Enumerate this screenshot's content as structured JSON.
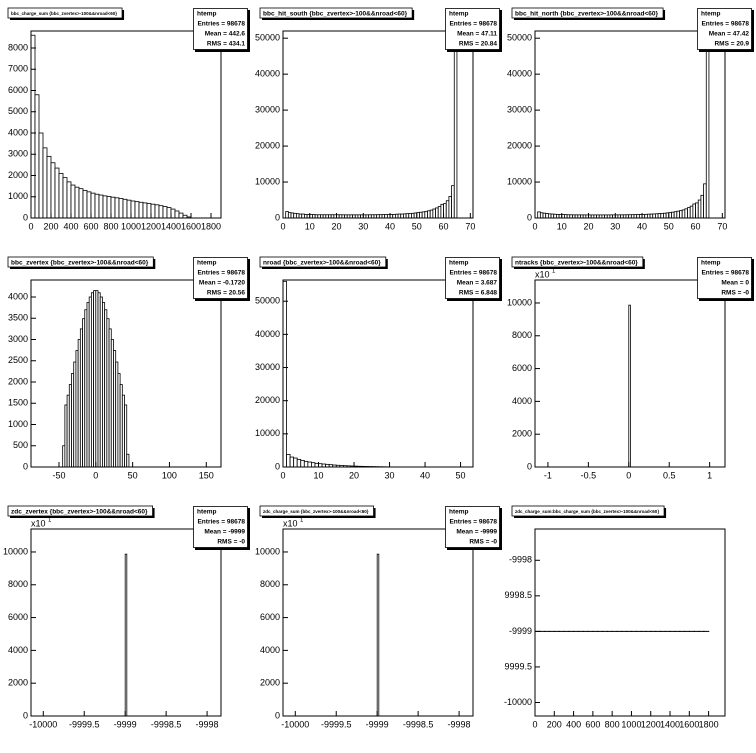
{
  "chart_data": [
    {
      "type": "histogram",
      "title": "bbc_charge_sum {bbc_zvertex>-100&&nroad<60}",
      "stats": [
        "htemp",
        "Entries = 98678",
        "Mean = 442.6",
        "RMS = 434.1"
      ],
      "color": "#000000",
      "bins": [
        0,
        40,
        80,
        120,
        160,
        200,
        240,
        280,
        320,
        360,
        400,
        440,
        480,
        520,
        560,
        600,
        640,
        680,
        720,
        760,
        800,
        840,
        880,
        920,
        960,
        1000,
        1040,
        1080,
        1120,
        1160,
        1200,
        1240,
        1280,
        1320,
        1360,
        1400,
        1440,
        1480,
        1520,
        1560,
        1600
      ],
      "values": [
        8600,
        5800,
        4000,
        3300,
        2900,
        2600,
        2350,
        2100,
        1900,
        1700,
        1550,
        1450,
        1380,
        1300,
        1230,
        1170,
        1120,
        1080,
        1040,
        1010,
        980,
        950,
        920,
        880,
        840,
        800,
        770,
        740,
        710,
        680,
        650,
        620,
        580,
        540,
        490,
        420,
        330,
        230,
        130,
        50
      ],
      "xlim": [
        0,
        1900
      ],
      "xticks": [
        0,
        200,
        400,
        600,
        800,
        1000,
        1200,
        1400,
        1600,
        1800
      ],
      "ylim": [
        0,
        8800
      ],
      "yticks": [
        0,
        1000,
        2000,
        3000,
        4000,
        5000,
        6000,
        7000,
        8000
      ]
    },
    {
      "type": "histogram",
      "title": "bbc_hit_south {bbc_zvertex>-100&&nroad<60}",
      "stats": [
        "htemp",
        "Entries = 98678",
        "Mean = 47.11",
        "RMS = 20.84"
      ],
      "color": "#000000",
      "bins": [
        0,
        1,
        2,
        3,
        4,
        5,
        6,
        7,
        8,
        9,
        10,
        11,
        12,
        13,
        14,
        15,
        16,
        17,
        18,
        19,
        20,
        21,
        22,
        23,
        24,
        25,
        26,
        27,
        28,
        29,
        30,
        31,
        32,
        33,
        34,
        35,
        36,
        37,
        38,
        39,
        40,
        41,
        42,
        43,
        44,
        45,
        46,
        47,
        48,
        49,
        50,
        51,
        52,
        53,
        54,
        55,
        56,
        57,
        58,
        59,
        60,
        61,
        62,
        63,
        64,
        65,
        66,
        67,
        68,
        69,
        70
      ],
      "values": [
        0,
        1800,
        1500,
        1400,
        1300,
        1200,
        1100,
        1100,
        1000,
        1000,
        950,
        950,
        900,
        900,
        900,
        900,
        900,
        900,
        900,
        900,
        900,
        900,
        880,
        880,
        880,
        880,
        880,
        880,
        880,
        880,
        880,
        880,
        900,
        900,
        900,
        920,
        920,
        950,
        950,
        980,
        1000,
        1000,
        1050,
        1100,
        1100,
        1150,
        1200,
        1250,
        1300,
        1400,
        1500,
        1600,
        1700,
        1850,
        2000,
        2200,
        2500,
        2800,
        3200,
        3800,
        4000,
        4800,
        6000,
        9000,
        52000,
        0,
        0,
        0,
        0,
        0
      ],
      "xlim": [
        0,
        71
      ],
      "xticks": [
        0,
        10,
        20,
        30,
        40,
        50,
        60,
        70
      ],
      "ylim": [
        0,
        52000
      ],
      "yticks": [
        0,
        10000,
        20000,
        30000,
        40000,
        50000
      ]
    },
    {
      "type": "histogram",
      "title": "bbc_hit_north {bbc_zvertex>-100&&nroad<60}",
      "stats": [
        "htemp",
        "Entries = 98678",
        "Mean = 47.42",
        "RMS = 20.9"
      ],
      "color": "#000000",
      "bins": [
        0,
        1,
        2,
        3,
        4,
        5,
        6,
        7,
        8,
        9,
        10,
        11,
        12,
        13,
        14,
        15,
        16,
        17,
        18,
        19,
        20,
        21,
        22,
        23,
        24,
        25,
        26,
        27,
        28,
        29,
        30,
        31,
        32,
        33,
        34,
        35,
        36,
        37,
        38,
        39,
        40,
        41,
        42,
        43,
        44,
        45,
        46,
        47,
        48,
        49,
        50,
        51,
        52,
        53,
        54,
        55,
        56,
        57,
        58,
        59,
        60,
        61,
        62,
        63,
        64,
        65,
        66,
        67,
        68,
        69,
        70
      ],
      "values": [
        0,
        1700,
        1450,
        1350,
        1250,
        1150,
        1100,
        1050,
        1000,
        980,
        950,
        930,
        900,
        890,
        880,
        880,
        870,
        870,
        870,
        860,
        860,
        860,
        860,
        860,
        860,
        860,
        860,
        860,
        870,
        870,
        870,
        880,
        880,
        890,
        900,
        910,
        920,
        940,
        960,
        990,
        1000,
        1020,
        1060,
        1100,
        1130,
        1170,
        1220,
        1270,
        1330,
        1420,
        1520,
        1620,
        1750,
        1900,
        2050,
        2250,
        2550,
        2900,
        3300,
        3900,
        4200,
        5000,
        6300,
        9500,
        51800,
        0,
        0,
        0,
        0,
        0
      ],
      "xlim": [
        0,
        71
      ],
      "xticks": [
        0,
        10,
        20,
        30,
        40,
        50,
        60,
        70
      ],
      "ylim": [
        0,
        52000
      ],
      "yticks": [
        0,
        10000,
        20000,
        30000,
        40000,
        50000
      ]
    },
    {
      "type": "histogram",
      "title": "bbc_zvertex {bbc_zvertex>-100&&nroad<60}",
      "stats": [
        "htemp",
        "Entries = 98678",
        "Mean = -0.1720",
        "RMS = 20.56"
      ],
      "color": "#000000",
      "bins": [
        -45,
        -42,
        -39,
        -36,
        -33,
        -30,
        -27,
        -24,
        -21,
        -18,
        -15,
        -12,
        -9,
        -6,
        -3,
        0,
        3,
        6,
        9,
        12,
        15,
        18,
        21,
        24,
        27,
        30,
        33,
        36,
        39,
        42,
        45
      ],
      "values": [
        500,
        1460,
        1690,
        1940,
        2200,
        2470,
        2740,
        3000,
        3250,
        3490,
        3700,
        3870,
        4000,
        4100,
        4150,
        4150,
        4100,
        4000,
        3870,
        3700,
        3490,
        3250,
        3000,
        2740,
        2470,
        2200,
        1940,
        1690,
        1460,
        300
      ],
      "xlim": [
        -88,
        170
      ],
      "xticks": [
        -50,
        0,
        50,
        100,
        150
      ],
      "ylim": [
        0,
        4400
      ],
      "yticks": [
        0,
        500,
        1000,
        1500,
        2000,
        2500,
        3000,
        3500,
        4000
      ]
    },
    {
      "type": "histogram",
      "title": "nroad {bbc_zvertex>-100&&nroad<60}",
      "stats": [
        "htemp",
        "Entries = 98678",
        "Mean = 3.687",
        "RMS = 6.848"
      ],
      "color": "#000000",
      "bins": [
        0,
        1,
        2,
        3,
        4,
        5,
        6,
        7,
        8,
        9,
        10,
        11,
        12,
        13,
        14,
        15,
        16,
        17,
        18,
        19,
        20,
        21,
        22,
        23,
        24,
        25,
        26,
        27,
        28,
        29,
        30
      ],
      "values": [
        56000,
        3800,
        3000,
        2700,
        2300,
        2000,
        1700,
        1500,
        1300,
        1100,
        1000,
        900,
        800,
        700,
        600,
        520,
        450,
        400,
        350,
        300,
        260,
        220,
        190,
        160,
        140,
        120,
        100,
        80,
        60,
        40
      ],
      "xlim": [
        0,
        53.5
      ],
      "xticks": [
        0,
        10,
        20,
        30,
        40,
        50
      ],
      "ylim": [
        0,
        56400
      ],
      "yticks": [
        0,
        10000,
        20000,
        30000,
        40000,
        50000
      ]
    },
    {
      "type": "histogram",
      "title": "ntracks {bbc_zvertex>-100&&nroad<60}",
      "stats": [
        "htemp",
        "Entries = 98678",
        "Mean =    0",
        "RMS =   -0"
      ],
      "color": "#000000",
      "y_multiplier": "x10",
      "y_multiplier_exponent": "1",
      "bins": [
        0,
        0.02
      ],
      "values": [
        9868
      ],
      "xlim": [
        -1.16,
        1.19
      ],
      "xticks": [
        -1,
        -0.5,
        0,
        0.5,
        1
      ],
      "ylim": [
        0,
        11400
      ],
      "yticks": [
        0,
        2000,
        4000,
        6000,
        8000,
        10000
      ]
    },
    {
      "type": "histogram",
      "title": "zdc_zvertex {bbc_zvertex>-100&&nroad<60}",
      "stats": [
        "htemp",
        "Entries = 98678",
        "Mean = -9999",
        "RMS =   -0"
      ],
      "color": "#000000",
      "y_multiplier": "x10",
      "y_multiplier_exponent": "1",
      "bins": [
        -9999,
        -9998.98
      ],
      "values": [
        9868
      ],
      "xlim": [
        -10000.15,
        -9997.83
      ],
      "xticks": [
        -10000,
        -9999.5,
        -9999,
        -9998.5,
        -9998
      ],
      "ylim": [
        0,
        11400
      ],
      "yticks": [
        0,
        2000,
        4000,
        6000,
        8000,
        10000
      ]
    },
    {
      "type": "histogram",
      "title": "zdc_charge_sum {bbc_zvertex>-100&&nroad<60}",
      "stats": [
        "htemp",
        "Entries = 98678",
        "Mean = -9999",
        "RMS =   -0"
      ],
      "color": "#000000",
      "y_multiplier": "x10",
      "y_multiplier_exponent": "1",
      "bins": [
        -9999,
        -9998.98
      ],
      "values": [
        9868
      ],
      "xlim": [
        -10000.15,
        -9997.83
      ],
      "xticks": [
        -10000,
        -9999.5,
        -9999,
        -9998.5,
        -9998
      ],
      "ylim": [
        0,
        11400
      ],
      "yticks": [
        0,
        2000,
        4000,
        6000,
        8000,
        10000
      ]
    },
    {
      "type": "scatter",
      "title": "zdc_charge_sum:bbc_charge_sum {bbc_zvertex>-100&&nroad<60}",
      "color": "#000000",
      "x": [
        0,
        50,
        100,
        150,
        200,
        250,
        300,
        350,
        400,
        450,
        500,
        550,
        600,
        650,
        700,
        750,
        800,
        850,
        900,
        950,
        1000,
        1050,
        1100,
        1150,
        1200,
        1250,
        1300,
        1350,
        1400,
        1450,
        1500,
        1550,
        1600,
        1650,
        1700,
        1750
      ],
      "values": [
        -9999,
        -9999,
        -9999,
        -9999,
        -9999,
        -9999,
        -9999,
        -9999,
        -9999,
        -9999,
        -9999,
        -9999,
        -9999,
        -9999,
        -9999,
        -9999,
        -9999,
        -9999,
        -9999,
        -9999,
        -9999,
        -9999,
        -9999,
        -9999,
        -9999,
        -9999,
        -9999,
        -9999,
        -9999,
        -9999,
        -9999,
        -9999,
        -9999,
        -9999,
        -9999,
        -9999
      ],
      "xlim": [
        0,
        1970
      ],
      "xticks": [
        0,
        200,
        400,
        600,
        800,
        1000,
        1200,
        1400,
        1600,
        1800
      ],
      "ylim": [
        -10000.19,
        -9997.56
      ],
      "yticks": [
        -10000,
        -9999.5,
        -9999,
        -9998.5,
        -9998
      ]
    }
  ]
}
